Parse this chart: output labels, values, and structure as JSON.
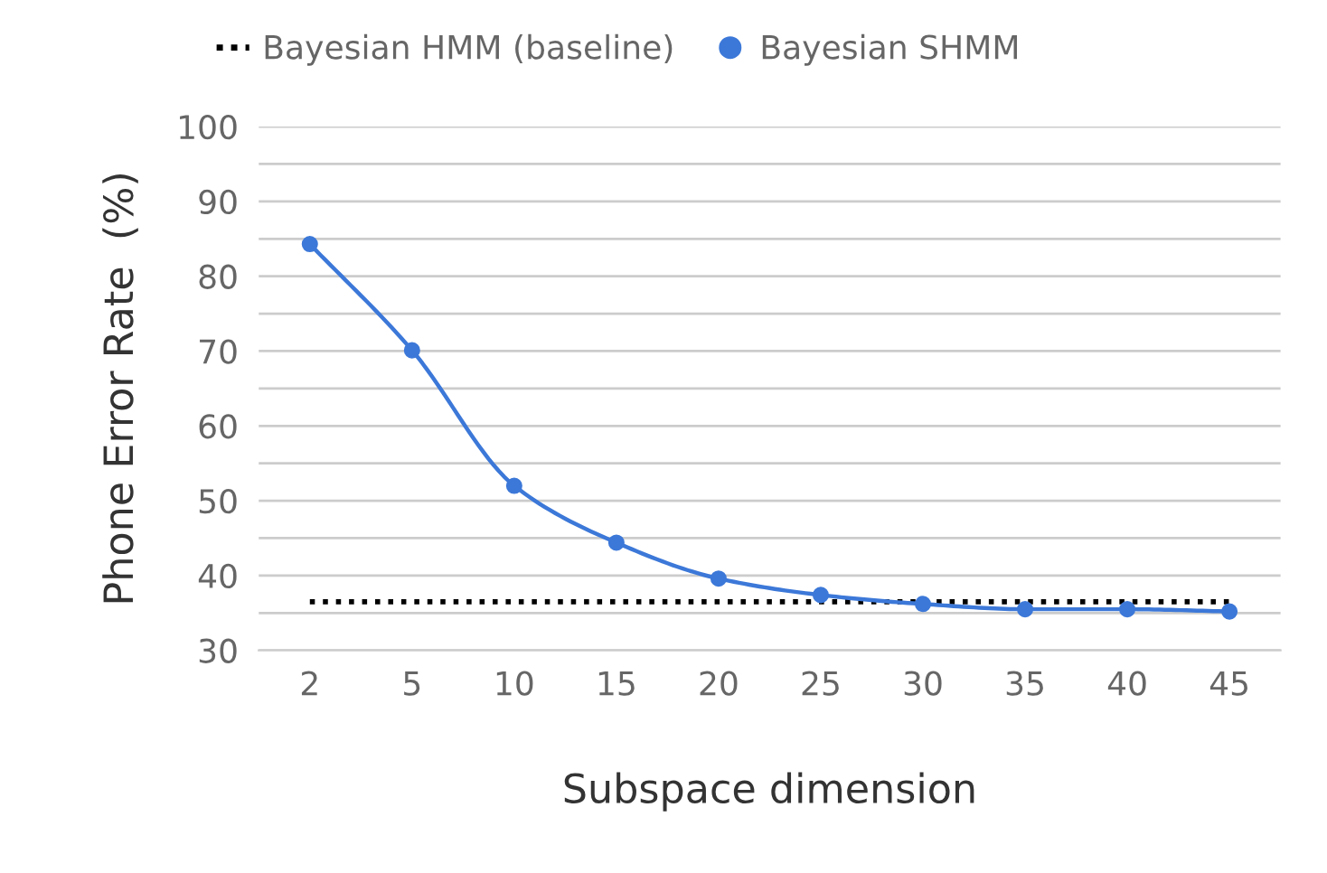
{
  "chart_data": {
    "type": "line",
    "xlabel": "Subspace dimension",
    "ylabel": "Phone Error Rate  (%)",
    "categories": [
      "2",
      "5",
      "10",
      "15",
      "20",
      "25",
      "30",
      "35",
      "40",
      "45"
    ],
    "series": [
      {
        "name": "Bayesian HMM (baseline)",
        "color": "#000000",
        "line_style": "dotted",
        "marker": "none",
        "values": [
          36.5,
          36.5,
          36.5,
          36.5,
          36.5,
          36.5,
          36.5,
          36.5,
          36.5,
          36.5
        ]
      },
      {
        "name": "Bayesian SHMM",
        "color": "#3c78d8",
        "line_style": "solid",
        "marker": "circle",
        "values": [
          84.3,
          70.1,
          52.0,
          44.4,
          39.6,
          37.4,
          36.2,
          35.5,
          35.5,
          35.2
        ]
      }
    ],
    "ylim": [
      30,
      100
    ],
    "yticks": [
      30,
      {
        "value": 35,
        "label": null
      },
      40,
      {
        "value": 45,
        "label": null
      },
      50,
      {
        "value": 55,
        "label": null
      },
      60,
      {
        "value": 65,
        "label": null
      },
      70,
      {
        "value": 75,
        "label": null
      },
      80,
      {
        "value": 85,
        "label": null
      },
      90,
      {
        "value": 95,
        "label": null
      },
      100
    ],
    "grid": "y",
    "legend": "top left"
  }
}
